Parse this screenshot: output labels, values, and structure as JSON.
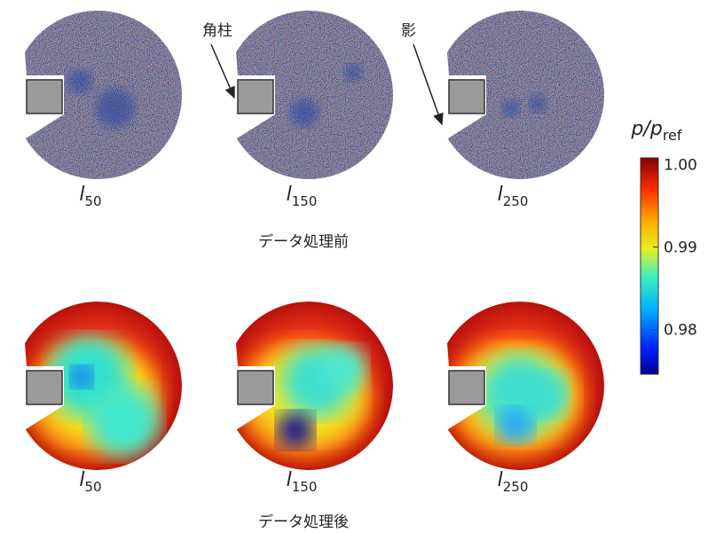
{
  "annotations": [
    "角柱",
    "影"
  ],
  "rows": [
    {
      "caption": "データ処理前",
      "panels": [
        {
          "symbol": "l",
          "subscript": "50"
        },
        {
          "symbol": "l",
          "subscript": "150"
        },
        {
          "symbol": "l",
          "subscript": "250"
        }
      ]
    },
    {
      "caption": "データ処理後",
      "panels": [
        {
          "symbol": "l",
          "subscript": "50"
        },
        {
          "symbol": "l",
          "subscript": "150"
        },
        {
          "symbol": "l",
          "subscript": "250"
        }
      ]
    }
  ],
  "colorbar": {
    "label": "p/p",
    "label_subscript": "ref",
    "lim": [
      0.9746,
      1.0008
    ],
    "ticks": [
      {
        "value": 1,
        "label": "1.00"
      },
      {
        "value": 0.99,
        "label": "0.99"
      },
      {
        "value": 0.98,
        "label": "0.98"
      }
    ]
  }
}
